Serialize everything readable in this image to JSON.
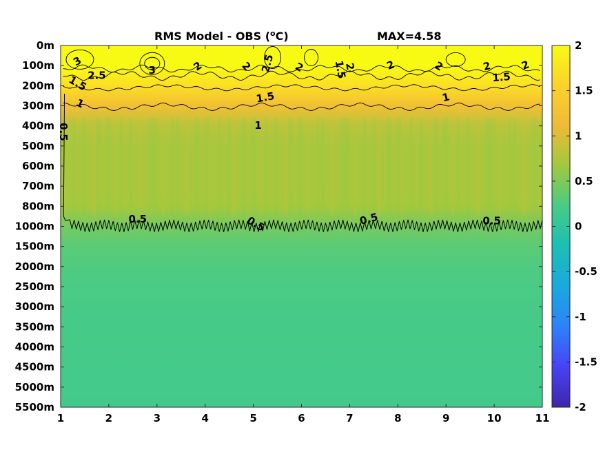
{
  "chart_data": {
    "type": "heatmap",
    "title": "RMS Model - OBS (",
    "title_unit_sup": "o",
    "title_unit_end": "C)",
    "max_label": "MAX=4.58",
    "x_ticks": [
      "1",
      "2",
      "3",
      "4",
      "5",
      "6",
      "7",
      "8",
      "9",
      "10",
      "11"
    ],
    "xlim": [
      1,
      11
    ],
    "y_ticks": [
      "0m",
      "100m",
      "200m",
      "300m",
      "400m",
      "500m",
      "600m",
      "700m",
      "800m",
      "1000m",
      "1500m",
      "2000m",
      "2500m",
      "3000m",
      "3500m",
      "4000m",
      "4500m",
      "5000m",
      "5500m"
    ],
    "colorbar": {
      "ticks": [
        "2",
        "1.5",
        "1",
        "0.5",
        "0",
        "-0.5",
        "-1",
        "-1.5",
        "-2"
      ],
      "clim": [
        -2,
        2
      ],
      "colormap": [
        "#3e26a8",
        "#4743f5",
        "#2d82fa",
        "#1aa9de",
        "#1bbfb4",
        "#48cb86",
        "#9fc93e",
        "#f0ba36",
        "#fcd22c",
        "#f8fa14"
      ]
    },
    "depth_profile": [
      {
        "y_index": 0,
        "value": 2.2
      },
      {
        "y_index": 1,
        "value": 2.0
      },
      {
        "y_index": 2,
        "value": 1.7
      },
      {
        "y_index": 3,
        "value": 1.2
      },
      {
        "y_index": 4,
        "value": 0.8
      },
      {
        "y_index": 5,
        "value": 0.72
      },
      {
        "y_index": 6,
        "value": 0.72
      },
      {
        "y_index": 7,
        "value": 0.72
      },
      {
        "y_index": 8,
        "value": 0.7
      },
      {
        "y_index": 9,
        "value": 0.45
      },
      {
        "y_index": 10,
        "value": 0.32
      },
      {
        "y_index": 11,
        "value": 0.26
      },
      {
        "y_index": 12,
        "value": 0.23
      },
      {
        "y_index": 14,
        "value": 0.2
      },
      {
        "y_index": 18,
        "value": 0.17
      }
    ],
    "contour_labels": [
      {
        "text": "3",
        "x": 1.35,
        "y": 0.8,
        "rotate": -30
      },
      {
        "text": "2.5",
        "x": 1.75,
        "y": 1.5,
        "rotate": 0
      },
      {
        "text": "1.5",
        "x": 1.35,
        "y": 1.9,
        "rotate": 30
      },
      {
        "text": "3",
        "x": 2.9,
        "y": 1.25,
        "rotate": 0
      },
      {
        "text": "2",
        "x": 3.85,
        "y": 1.05,
        "rotate": -35
      },
      {
        "text": "1",
        "x": 1.4,
        "y": 2.9,
        "rotate": 25
      },
      {
        "text": "0.5",
        "x": 1.05,
        "y": 4.3,
        "rotate": 90
      },
      {
        "text": "2",
        "x": 4.85,
        "y": 1.05,
        "rotate": 45
      },
      {
        "text": "2.5",
        "x": 5.3,
        "y": 0.9,
        "rotate": -75
      },
      {
        "text": "1.5",
        "x": 5.25,
        "y": 2.6,
        "rotate": -10
      },
      {
        "text": "1",
        "x": 5.1,
        "y": 4.0,
        "rotate": 0
      },
      {
        "text": "2",
        "x": 5.95,
        "y": 1.1,
        "rotate": 30
      },
      {
        "text": "1.5",
        "x": 6.8,
        "y": 1.2,
        "rotate": 80
      },
      {
        "text": "2",
        "x": 7.0,
        "y": 1.05,
        "rotate": 80
      },
      {
        "text": "2",
        "x": 7.85,
        "y": 1.0,
        "rotate": -20
      },
      {
        "text": "2",
        "x": 8.85,
        "y": 1.05,
        "rotate": 30
      },
      {
        "text": "1",
        "x": 9.0,
        "y": 2.6,
        "rotate": -15
      },
      {
        "text": "2",
        "x": 9.85,
        "y": 1.05,
        "rotate": -15
      },
      {
        "text": "1.5",
        "x": 10.15,
        "y": 1.6,
        "rotate": -5
      },
      {
        "text": "2",
        "x": 10.65,
        "y": 1.0,
        "rotate": -20
      },
      {
        "text": "0.5",
        "x": 2.6,
        "y": 8.65,
        "rotate": 0
      },
      {
        "text": "0.5",
        "x": 5.05,
        "y": 8.9,
        "rotate": 30
      },
      {
        "text": "0.5",
        "x": 7.4,
        "y": 8.65,
        "rotate": -15
      },
      {
        "text": "0.5",
        "x": 9.95,
        "y": 8.75,
        "rotate": 0
      }
    ]
  }
}
